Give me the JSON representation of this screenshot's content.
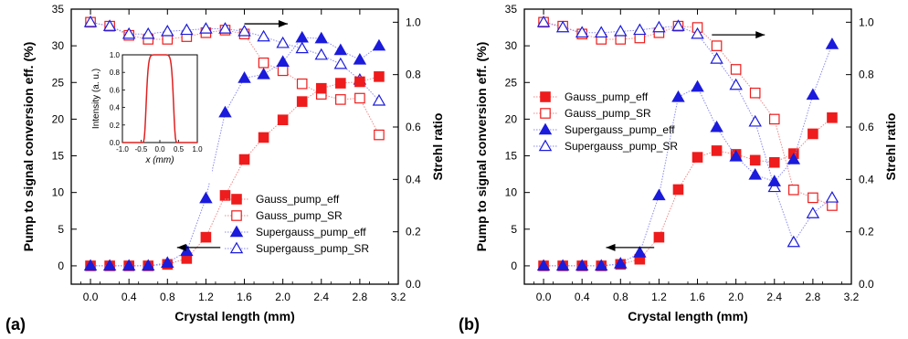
{
  "colors": {
    "red": "#ee1c1c",
    "blue": "#1b1bdc",
    "line_red": "#f08a8a",
    "line_blue": "#8a8af0",
    "inset_curve": "#e02020"
  },
  "chart_data": [
    {
      "type": "scatter",
      "panel_label": "(a)",
      "xlabel": "Crystal length (mm)",
      "ylabel_left": "Pump to signal conversion eff. (%)",
      "ylabel_right": "Strehl ratio",
      "xlim": [
        -0.2,
        3.2
      ],
      "ylim_left": [
        -2.5,
        35
      ],
      "ylim_right": [
        0.0,
        1.05
      ],
      "xticks": [
        "0.0",
        "0.4",
        "0.8",
        "1.2",
        "1.6",
        "2.0",
        "2.4",
        "2.8",
        "3.2"
      ],
      "yticks_left": [
        "0",
        "5",
        "10",
        "15",
        "20",
        "25",
        "30",
        "35"
      ],
      "yticks_right": [
        "0.0",
        "0.2",
        "0.4",
        "0.6",
        "0.8",
        "1.0"
      ],
      "legend_position": "lower-right",
      "x": [
        0.0,
        0.2,
        0.4,
        0.6,
        0.8,
        1.0,
        1.2,
        1.4,
        1.6,
        1.8,
        2.0,
        2.2,
        2.4,
        2.6,
        2.8,
        3.0
      ],
      "series": [
        {
          "name": "Gauss_pump_eff",
          "axis": "left",
          "marker": "square",
          "filled": true,
          "color": "red",
          "values": [
            0,
            0,
            0,
            0,
            0.2,
            1.0,
            3.9,
            9.6,
            14.5,
            17.5,
            19.9,
            22.4,
            24.2,
            24.9,
            25.1,
            25.8
          ]
        },
        {
          "name": "Gauss_pump_SR",
          "axis": "right",
          "marker": "square",
          "filled": false,
          "color": "red",
          "values": [
            1.0,
            0.985,
            0.95,
            0.935,
            0.935,
            0.945,
            0.96,
            0.97,
            0.955,
            0.845,
            0.815,
            0.765,
            0.725,
            0.705,
            0.71,
            0.57
          ]
        },
        {
          "name": "Supergauss_pump_eff",
          "axis": "left",
          "marker": "triangle",
          "filled": true,
          "color": "blue",
          "values": [
            0,
            0,
            0,
            0,
            0.4,
            2.0,
            9.2,
            20.9,
            25.6,
            26.1,
            27.8,
            31.1,
            31.0,
            29.4,
            28.1,
            30.0
          ]
        },
        {
          "name": "Supergauss_pump_SR",
          "axis": "right",
          "marker": "triangle",
          "filled": false,
          "color": "blue",
          "values": [
            1.0,
            0.985,
            0.955,
            0.955,
            0.965,
            0.97,
            0.975,
            0.975,
            0.965,
            0.945,
            0.92,
            0.9,
            0.875,
            0.84,
            0.78,
            0.7
          ]
        }
      ],
      "arrows": [
        {
          "direction": "right",
          "x_from": 1.6,
          "x_to": 2.05,
          "y": 33.0
        },
        {
          "direction": "left",
          "x_from": 1.35,
          "x_to": 0.9,
          "y": 2.5
        }
      ],
      "inset": {
        "type": "line",
        "xlabel": "x (mm)",
        "ylabel": "Intensity (a. u.)",
        "xlim": [
          -1.0,
          1.0
        ],
        "ylim": [
          0.0,
          1.0
        ],
        "xticks": [
          "-1.0",
          "-0.5",
          "0.0",
          "0.5",
          "1.0"
        ],
        "yticks": [
          "0.0",
          "0.2",
          "0.4",
          "0.6",
          "0.8",
          "1.0"
        ],
        "curve": "supergaussian flat-top, half width 0.4 mm"
      }
    },
    {
      "type": "scatter",
      "panel_label": "(b)",
      "xlabel": "Crystal length (mm)",
      "ylabel_left": "Pump to signal conversion eff. (%)",
      "ylabel_right": "Strehl ratio",
      "xlim": [
        -0.2,
        3.2
      ],
      "ylim_left": [
        -2.5,
        35
      ],
      "ylim_right": [
        0.0,
        1.05
      ],
      "xticks": [
        "0.0",
        "0.4",
        "0.8",
        "1.2",
        "1.6",
        "2.0",
        "2.4",
        "2.8",
        "3.2"
      ],
      "yticks_left": [
        "0",
        "5",
        "10",
        "15",
        "20",
        "25",
        "30",
        "35"
      ],
      "yticks_right": [
        "0.0",
        "0.2",
        "0.4",
        "0.6",
        "0.8",
        "1.0"
      ],
      "legend_position": "top-left",
      "x": [
        0.0,
        0.2,
        0.4,
        0.6,
        0.8,
        1.0,
        1.2,
        1.4,
        1.6,
        1.8,
        2.0,
        2.2,
        2.4,
        2.6,
        2.8,
        3.0
      ],
      "series": [
        {
          "name": "Gauss_pump_eff",
          "axis": "left",
          "marker": "square",
          "filled": true,
          "color": "red",
          "values": [
            0,
            0,
            0,
            0,
            0.2,
            0.9,
            3.9,
            10.4,
            14.8,
            15.7,
            15.2,
            14.4,
            14.1,
            15.3,
            18.0,
            20.2
          ]
        },
        {
          "name": "Gauss_pump_SR",
          "axis": "right",
          "marker": "square",
          "filled": false,
          "color": "red",
          "values": [
            1.0,
            0.985,
            0.955,
            0.935,
            0.935,
            0.94,
            0.96,
            0.985,
            0.98,
            0.91,
            0.82,
            0.73,
            0.63,
            0.36,
            0.33,
            0.3
          ]
        },
        {
          "name": "Supergauss_pump_eff",
          "axis": "left",
          "marker": "triangle",
          "filled": true,
          "color": "blue",
          "values": [
            0,
            0,
            0,
            0,
            0.3,
            1.8,
            9.6,
            23.0,
            24.4,
            18.9,
            14.9,
            12.4,
            11.5,
            14.5,
            23.3,
            30.2
          ]
        },
        {
          "name": "Supergauss_pump_SR",
          "axis": "right",
          "marker": "triangle",
          "filled": false,
          "color": "blue",
          "values": [
            1.0,
            0.98,
            0.96,
            0.96,
            0.965,
            0.97,
            0.98,
            0.985,
            0.955,
            0.86,
            0.76,
            0.62,
            0.37,
            0.16,
            0.27,
            0.33
          ]
        }
      ],
      "arrows": [
        {
          "direction": "right",
          "x_from": 1.75,
          "x_to": 2.3,
          "y": 31.5
        },
        {
          "direction": "left",
          "x_from": 1.15,
          "x_to": 0.65,
          "y": 2.5
        }
      ]
    }
  ]
}
